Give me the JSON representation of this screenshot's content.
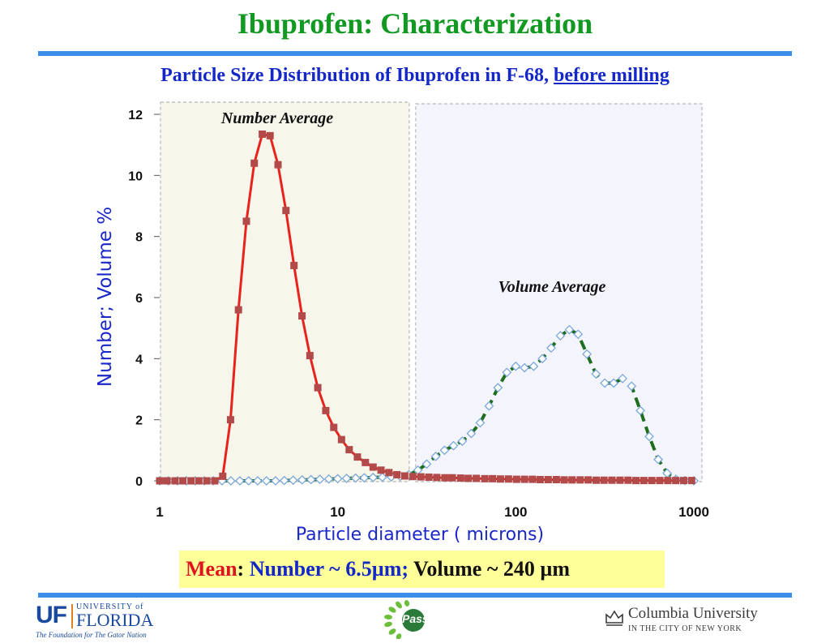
{
  "page": {
    "title": "Ibuprofen: Characterization",
    "subtitle_main": "Particle Size Distribution of Ibuprofen in F-68, ",
    "subtitle_underlined": "before milling"
  },
  "chart_data": {
    "type": "line",
    "x_scale": "log",
    "xlim": [
      1,
      1000
    ],
    "ylim": [
      0,
      12
    ],
    "xticks": [
      "1",
      "10",
      "100",
      "1000"
    ],
    "yticks": [
      "0",
      "2",
      "4",
      "6",
      "8",
      "10",
      "12"
    ],
    "xlabel": "Particle diameter ( microns)",
    "ylabel": "Number; Volume %",
    "region_labels": [
      "Number Average",
      "Volume Average"
    ],
    "colors": {
      "number": "#e8231c",
      "number_marker": "#b24a4a",
      "volume": "#1e6e1e",
      "volume_marker": "#7aa8d8",
      "axis_label": "#1a28c8"
    },
    "series": [
      {
        "key": "number",
        "x": [
          1.0,
          1.1,
          1.22,
          1.35,
          1.5,
          1.66,
          1.84,
          2.04,
          2.26,
          2.5,
          2.77,
          3.07,
          3.4,
          3.77,
          4.17,
          4.62,
          5.12,
          5.68,
          6.3,
          6.98,
          7.73,
          8.57,
          9.5,
          10.5,
          11.6,
          12.9,
          14.3,
          15.8,
          17.5,
          19.4,
          21.5,
          23.8,
          26.4,
          29.3,
          32.5,
          36,
          40,
          44,
          49,
          54,
          60,
          67,
          74,
          82,
          91,
          101,
          112,
          124,
          137,
          152,
          169,
          187,
          207,
          230,
          255,
          283,
          313,
          347,
          385,
          427,
          473,
          524,
          581,
          644,
          714,
          791,
          877,
          972
        ],
        "y": [
          0,
          0,
          0,
          0,
          0,
          0,
          0,
          0,
          0.15,
          2.0,
          5.6,
          8.5,
          10.4,
          11.35,
          11.3,
          10.35,
          8.85,
          7.05,
          5.4,
          4.1,
          3.05,
          2.3,
          1.75,
          1.35,
          1.02,
          0.78,
          0.6,
          0.45,
          0.35,
          0.27,
          0.2,
          0.16,
          0.14,
          0.13,
          0.12,
          0.11,
          0.1,
          0.1,
          0.09,
          0.08,
          0.08,
          0.07,
          0.07,
          0.06,
          0.06,
          0.05,
          0.05,
          0.05,
          0.04,
          0.04,
          0.04,
          0.03,
          0.03,
          0.03,
          0.03,
          0.02,
          0.02,
          0.02,
          0.02,
          0.02,
          0.01,
          0.01,
          0.01,
          0.01,
          0.01,
          0.01,
          0.01,
          0.01
        ]
      },
      {
        "key": "volume",
        "x": [
          1.0,
          1.12,
          1.26,
          1.41,
          1.58,
          1.78,
          2.0,
          2.24,
          2.51,
          2.82,
          3.16,
          3.55,
          3.98,
          4.47,
          5.01,
          5.62,
          6.31,
          7.08,
          7.94,
          8.91,
          10.0,
          11.2,
          12.6,
          14.1,
          15.8,
          17.8,
          20.0,
          22.4,
          25.1,
          28.2,
          31.6,
          35.5,
          39.8,
          44.7,
          50.1,
          56.2,
          63.1,
          70.8,
          79.4,
          89.1,
          100,
          112,
          126,
          141,
          158,
          178,
          200,
          224,
          251,
          282,
          316,
          355,
          398,
          447,
          501,
          562,
          631,
          708,
          794,
          891,
          1000
        ],
        "y": [
          0,
          0,
          0,
          0,
          0,
          0,
          0,
          0,
          0,
          0,
          0,
          0,
          0,
          0,
          0.01,
          0.02,
          0.03,
          0.04,
          0.05,
          0.06,
          0.07,
          0.08,
          0.09,
          0.1,
          0.11,
          0.12,
          0.13,
          0.15,
          0.2,
          0.35,
          0.55,
          0.8,
          1.0,
          1.15,
          1.3,
          1.55,
          1.9,
          2.45,
          3.05,
          3.55,
          3.75,
          3.7,
          3.75,
          4.0,
          4.35,
          4.75,
          4.95,
          4.8,
          4.15,
          3.5,
          3.2,
          3.2,
          3.35,
          3.1,
          2.3,
          1.45,
          0.7,
          0.25,
          0.05,
          0.01,
          0
        ]
      }
    ]
  },
  "summary": {
    "mean_label": "Mean",
    "colon": ":",
    "number_text": " Number ~ ",
    "number_value": "6.5µm;",
    "volume_text": " Volume ~ 240 µm"
  },
  "footer": {
    "uf_letters": "UF",
    "uf_small": "UNIVERSITY of",
    "uf_name": "FLORIDA",
    "uf_tagline": "The Foundation for The Gator Nation",
    "pass_label": "Pass",
    "columbia_name": "Columbia University",
    "columbia_sub": "IN THE CITY OF NEW YORK"
  }
}
